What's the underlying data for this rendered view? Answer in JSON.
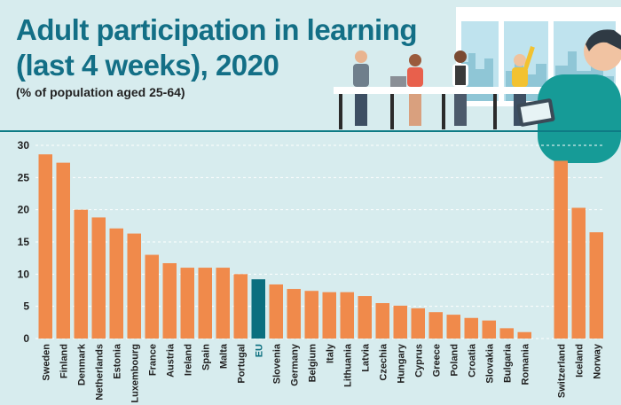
{
  "colors": {
    "background": "#d7ecee",
    "bar": "#f08a4b",
    "eu_bar": "#0b6f7f",
    "title": "#136f86",
    "divider": "#0e7b85",
    "grid": "#ffffff"
  },
  "header": {
    "title_line1": "Adult participation in learning",
    "title_line2": "(last 4 weeks), 2020",
    "subtitle": "(% of population aged 25-64)"
  },
  "chart_data": {
    "type": "bar",
    "title": "Adult participation in learning (last 4 weeks), 2020",
    "ylabel": "% of population aged 25-64",
    "xlabel": "",
    "ylim": [
      0,
      30
    ],
    "yticks": [
      "0",
      "5",
      "10",
      "15",
      "20",
      "25",
      "30"
    ],
    "grid": true,
    "highlight": "EU",
    "categories": [
      "Sweden",
      "Finland",
      "Denmark",
      "Netherlands",
      "Estonia",
      "Luxembourg",
      "France",
      "Austria",
      "Ireland",
      "Spain",
      "Malta",
      "Portugal",
      "EU",
      "Slovenia",
      "Germany",
      "Belgium",
      "Italy",
      "Lithuania",
      "Latvia",
      "Czechia",
      "Hungary",
      "Cyprus",
      "Greece",
      "Poland",
      "Croatia",
      "Slovakia",
      "Bulgaria",
      "Romania",
      "Switzerland",
      "Iceland",
      "Norway"
    ],
    "values": [
      28.6,
      27.3,
      20.0,
      18.8,
      17.1,
      16.3,
      13.0,
      11.7,
      11.0,
      11.0,
      11.0,
      10.0,
      9.2,
      8.4,
      7.7,
      7.4,
      7.2,
      7.2,
      6.6,
      5.5,
      5.1,
      4.7,
      4.1,
      3.7,
      3.2,
      2.8,
      1.6,
      1.0,
      27.6,
      20.3,
      16.5
    ],
    "group_gap_before": "Switzerland"
  }
}
